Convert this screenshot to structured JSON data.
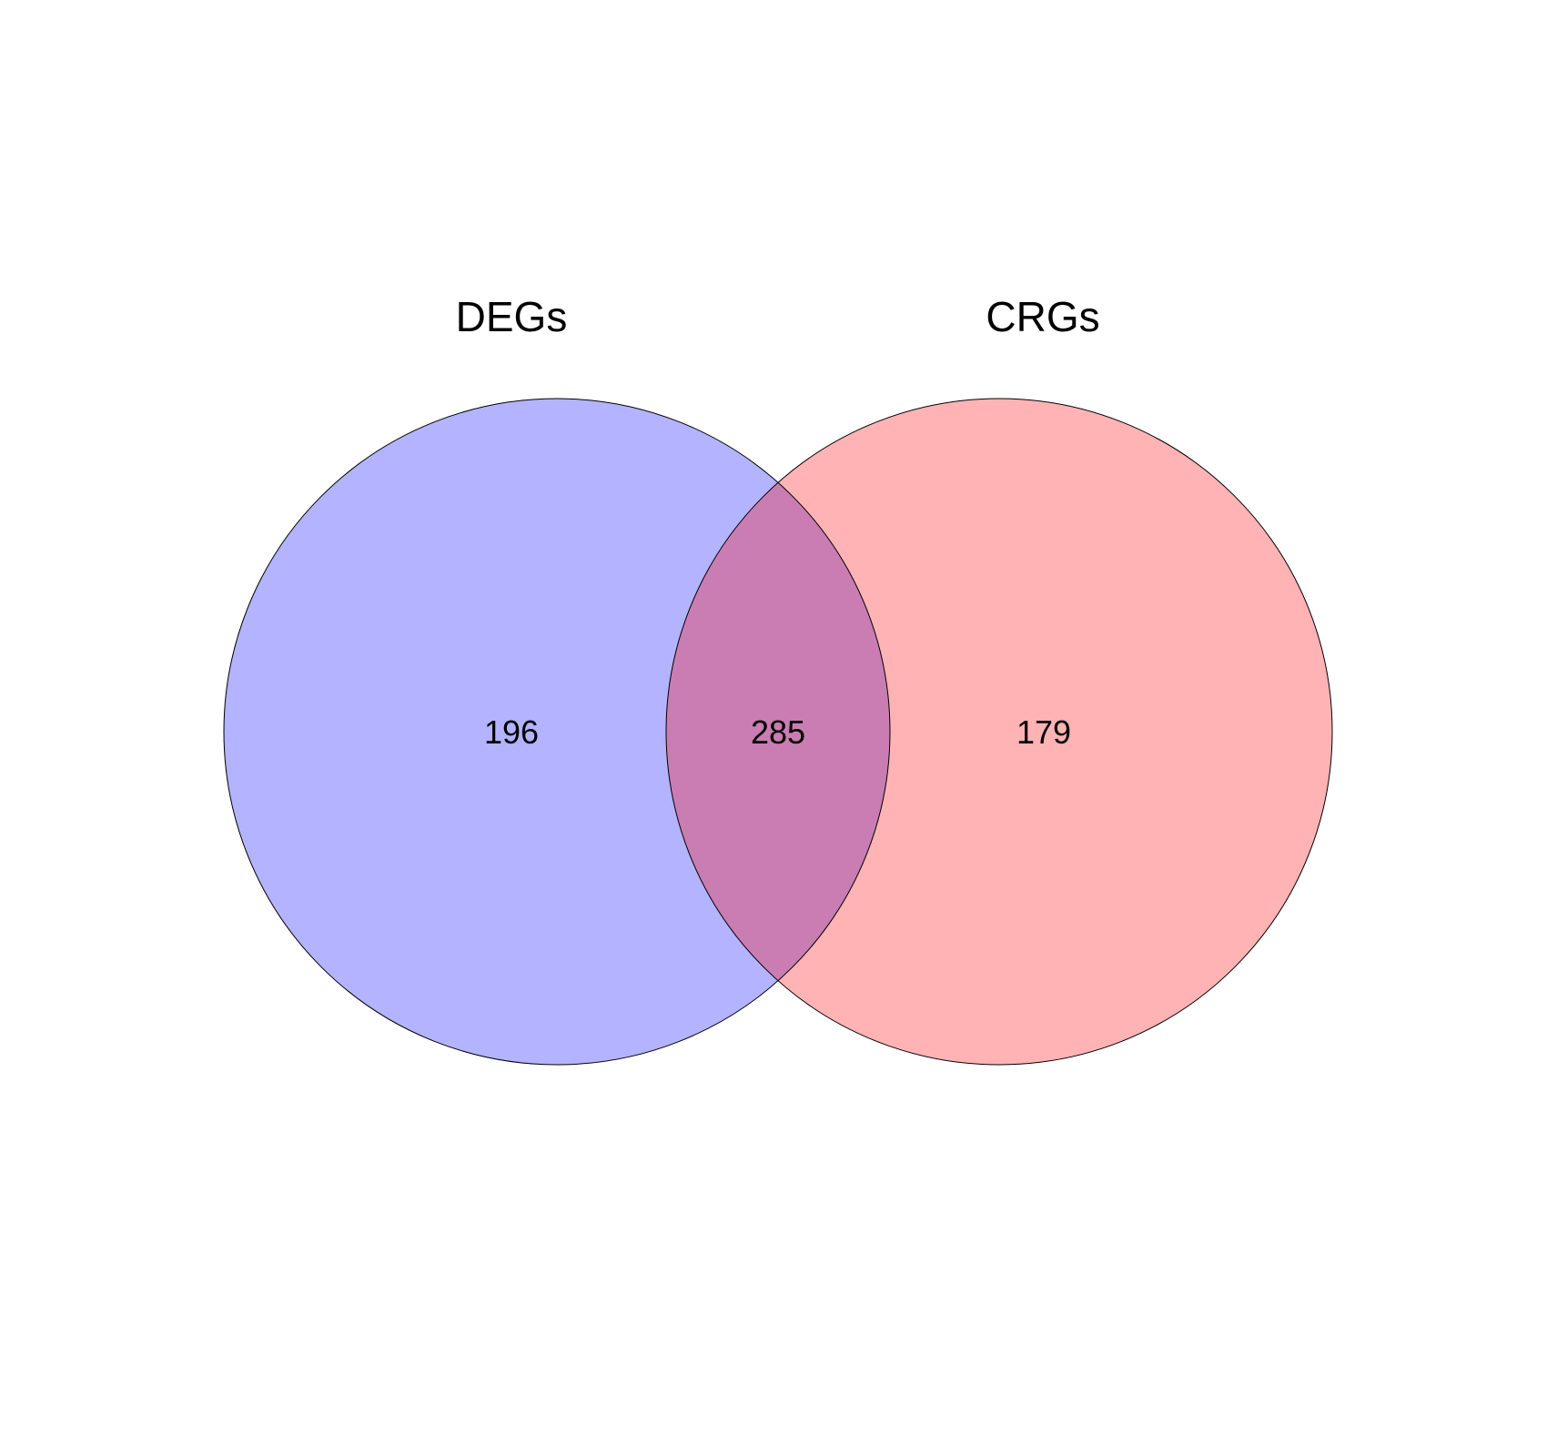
{
  "chart_data": {
    "type": "venn",
    "sets": [
      {
        "name": "DEGs",
        "only_count": "196",
        "color": "#b3b3ff"
      },
      {
        "name": "CRGs",
        "only_count": "179",
        "color": "#ffb3b5"
      }
    ],
    "intersection": {
      "count": "285",
      "color": "#c97db2"
    }
  }
}
